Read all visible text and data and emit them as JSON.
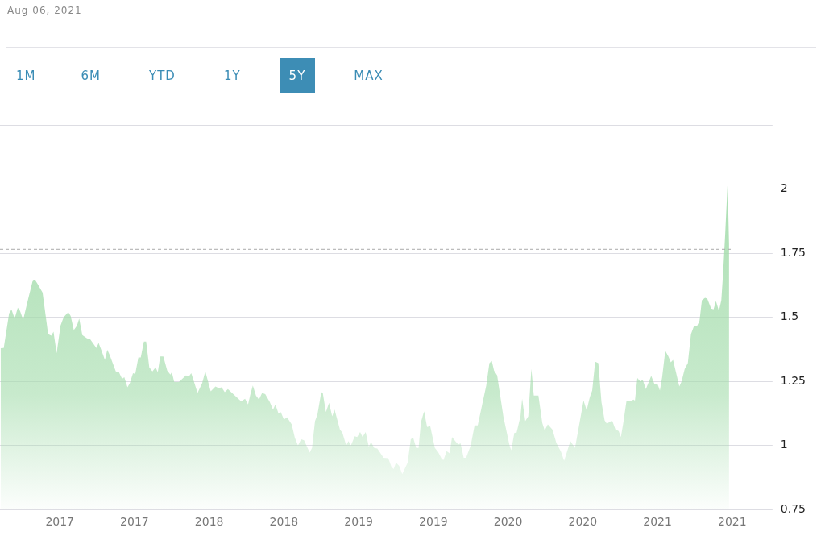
{
  "chart_data": {
    "type": "area",
    "title": "Aug 06, 2021",
    "annotations": [
      "1M",
      "6M",
      "YTD",
      "1Y",
      "5Y",
      "MAX"
    ],
    "x": [
      2016.604,
      2016.625,
      2016.661,
      2016.677,
      2016.698,
      2016.719,
      2016.734,
      2016.755,
      2016.792,
      2016.818,
      2016.833,
      2016.854,
      2016.885,
      2016.922,
      2016.943,
      2016.958,
      2016.979,
      2017.005,
      2017.026,
      2017.057,
      2017.073,
      2017.094,
      2017.115,
      2017.13,
      2017.151,
      2017.182,
      2017.203,
      2017.245,
      2017.26,
      2017.276,
      2017.302,
      2017.318,
      2017.333,
      2017.375,
      2017.396,
      2017.417,
      2017.432,
      2017.453,
      2017.469,
      2017.49,
      2017.505,
      2017.526,
      2017.542,
      2017.563,
      2017.578,
      2017.599,
      2017.62,
      2017.641,
      2017.656,
      2017.672,
      2017.693,
      2017.719,
      2017.74,
      2017.75,
      2017.766,
      2017.797,
      2017.844,
      2017.865,
      2017.88,
      2017.922,
      2017.953,
      2017.974,
      2018.01,
      2018.042,
      2018.063,
      2018.083,
      2018.104,
      2018.125,
      2018.214,
      2018.24,
      2018.26,
      2018.276,
      2018.292,
      2018.313,
      2018.333,
      2018.354,
      2018.375,
      2018.406,
      2018.427,
      2018.443,
      2018.464,
      2018.479,
      2018.5,
      2018.521,
      2018.552,
      2018.573,
      2018.594,
      2018.615,
      2018.635,
      2018.672,
      2018.688,
      2018.708,
      2018.724,
      2018.75,
      2018.76,
      2018.781,
      2018.802,
      2018.823,
      2018.839,
      2018.875,
      2018.891,
      2018.917,
      2018.932,
      2018.948,
      2018.974,
      2018.99,
      2019.01,
      2019.026,
      2019.047,
      2019.068,
      2019.083,
      2019.104,
      2019.125,
      2019.167,
      2019.198,
      2019.219,
      2019.234,
      2019.25,
      2019.271,
      2019.292,
      2019.328,
      2019.349,
      2019.365,
      2019.385,
      2019.401,
      2019.417,
      2019.438,
      2019.458,
      2019.479,
      2019.51,
      2019.531,
      2019.557,
      2019.568,
      2019.589,
      2019.609,
      2019.625,
      2019.651,
      2019.667,
      2019.682,
      2019.703,
      2019.719,
      2019.75,
      2019.776,
      2019.797,
      2019.828,
      2019.854,
      2019.875,
      2019.891,
      2019.906,
      2019.927,
      2019.969,
      2020.01,
      2020.021,
      2020.042,
      2020.057,
      2020.083,
      2020.094,
      2020.115,
      2020.135,
      2020.156,
      2020.172,
      2020.203,
      2020.229,
      2020.245,
      2020.266,
      2020.297,
      2020.323,
      2020.354,
      2020.375,
      2020.417,
      2020.448,
      2020.505,
      2020.526,
      2020.547,
      2020.563,
      2020.583,
      2020.604,
      2020.625,
      2020.646,
      2020.661,
      2020.688,
      2020.698,
      2020.719,
      2020.74,
      2020.755,
      2020.771,
      2020.792,
      2020.818,
      2020.839,
      2020.849,
      2020.865,
      2020.885,
      2020.901,
      2020.922,
      2020.958,
      2020.979,
      2021.0,
      2021.016,
      2021.031,
      2021.052,
      2021.073,
      2021.089,
      2021.104,
      2021.125,
      2021.146,
      2021.161,
      2021.182,
      2021.203,
      2021.224,
      2021.245,
      2021.266,
      2021.281,
      2021.297,
      2021.318,
      2021.333,
      2021.359,
      2021.375,
      2021.391,
      2021.411,
      2021.427,
      2021.438,
      2021.453,
      2021.469,
      2021.479
    ],
    "values": [
      1.379,
      1.38,
      1.515,
      1.53,
      1.495,
      1.537,
      1.525,
      1.49,
      1.58,
      1.64,
      1.647,
      1.628,
      1.596,
      1.434,
      1.428,
      1.444,
      1.36,
      1.467,
      1.5,
      1.52,
      1.505,
      1.45,
      1.467,
      1.495,
      1.43,
      1.418,
      1.415,
      1.38,
      1.4,
      1.375,
      1.334,
      1.373,
      1.354,
      1.289,
      1.286,
      1.26,
      1.266,
      1.227,
      1.243,
      1.282,
      1.279,
      1.343,
      1.343,
      1.405,
      1.405,
      1.305,
      1.289,
      1.305,
      1.286,
      1.347,
      1.347,
      1.292,
      1.276,
      1.286,
      1.247,
      1.247,
      1.273,
      1.27,
      1.282,
      1.205,
      1.243,
      1.289,
      1.211,
      1.23,
      1.224,
      1.227,
      1.208,
      1.22,
      1.172,
      1.182,
      1.16,
      1.2,
      1.234,
      1.195,
      1.179,
      1.205,
      1.2,
      1.169,
      1.14,
      1.16,
      1.124,
      1.13,
      1.101,
      1.11,
      1.082,
      1.03,
      1.0,
      1.024,
      1.02,
      0.972,
      0.99,
      1.095,
      1.12,
      1.208,
      1.205,
      1.13,
      1.166,
      1.114,
      1.14,
      1.062,
      1.05,
      1.0,
      1.017,
      1.0,
      1.036,
      1.033,
      1.052,
      1.033,
      1.052,
      0.995,
      1.014,
      0.99,
      0.988,
      0.952,
      0.95,
      0.917,
      0.908,
      0.933,
      0.92,
      0.888,
      0.933,
      1.024,
      1.03,
      0.99,
      0.99,
      1.091,
      1.133,
      1.072,
      1.075,
      0.99,
      0.975,
      0.946,
      0.943,
      0.978,
      0.969,
      1.033,
      1.014,
      1.004,
      1.008,
      0.952,
      0.952,
      1.0,
      1.078,
      1.078,
      1.163,
      1.234,
      1.321,
      1.33,
      1.292,
      1.273,
      1.111,
      1.0,
      0.981,
      1.049,
      1.05,
      1.114,
      1.182,
      1.095,
      1.114,
      1.298,
      1.195,
      1.195,
      1.088,
      1.059,
      1.082,
      1.062,
      1.01,
      0.975,
      0.94,
      1.017,
      0.99,
      1.175,
      1.137,
      1.188,
      1.214,
      1.327,
      1.321,
      1.169,
      1.098,
      1.085,
      1.095,
      1.095,
      1.062,
      1.056,
      1.033,
      1.088,
      1.172,
      1.172,
      1.179,
      1.175,
      1.263,
      1.25,
      1.256,
      1.22,
      1.272,
      1.24,
      1.24,
      1.214,
      1.266,
      1.369,
      1.347,
      1.324,
      1.334,
      1.282,
      1.23,
      1.25,
      1.298,
      1.321,
      1.434,
      1.467,
      1.467,
      1.486,
      1.566,
      1.576,
      1.573,
      1.534,
      1.531,
      1.563,
      1.525,
      1.566,
      1.663,
      1.825,
      2.02,
      1.785
    ],
    "color": "#a3dcab",
    "xlim": [
      2016.6,
      2021.5
    ],
    "xticks": [
      {
        "value": 2017,
        "label": "2017"
      },
      {
        "value": 2017.5,
        "label": "2017"
      },
      {
        "value": 2018,
        "label": "2018"
      },
      {
        "value": 2018.5,
        "label": "2018"
      },
      {
        "value": 2019,
        "label": "2019"
      },
      {
        "value": 2019.5,
        "label": "2019"
      },
      {
        "value": 2020,
        "label": "2020"
      },
      {
        "value": 2020.5,
        "label": "2020"
      },
      {
        "value": 2021,
        "label": "2021"
      },
      {
        "value": 2021.5,
        "label": "2021"
      }
    ],
    "ylim": [
      0.75,
      2.25
    ],
    "yticks": [
      0.75,
      1,
      1.25,
      1.5,
      1.75,
      2,
      {
        "value": 2.25,
        "label": null
      }
    ],
    "ref_lines": [
      {
        "axis": "y",
        "value": 1.765,
        "color": "#aaaaaa",
        "line_style": "dashed"
      }
    ],
    "grid": "y",
    "legend": false
  }
}
